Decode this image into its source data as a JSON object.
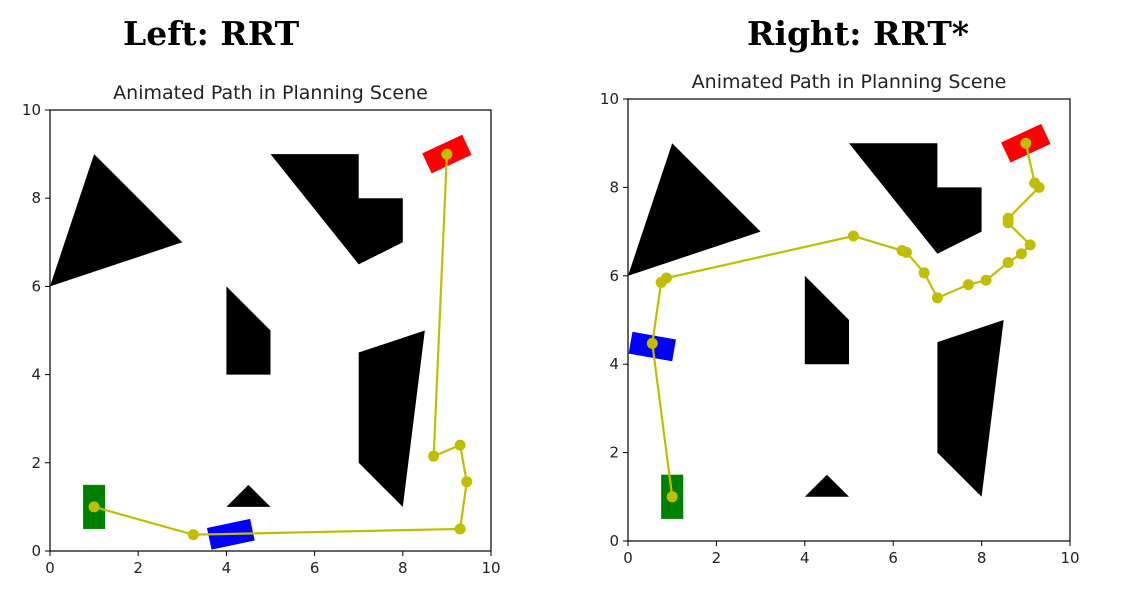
{
  "headings": {
    "left": "Left: RRT",
    "right": "Right: RRT*"
  },
  "colors": {
    "path": "#bfbf00",
    "obstacle": "#000000",
    "start": "#008000",
    "goal": "#ff0000",
    "robot": "#0000ff"
  },
  "chart_data": [
    {
      "type": "line",
      "title": "Animated Path in Planning Scene",
      "xlim": [
        0,
        10
      ],
      "ylim": [
        0,
        10
      ],
      "xticks": [
        "0",
        "2",
        "4",
        "6",
        "8",
        "10"
      ],
      "yticks": [
        "0",
        "2",
        "4",
        "6",
        "8",
        "10"
      ],
      "grid": false,
      "obstacles": [
        {
          "name": "triangle-large",
          "points": [
            [
              0,
              6
            ],
            [
              1,
              9
            ],
            [
              3,
              7
            ]
          ]
        },
        {
          "name": "l-shape",
          "points": [
            [
              5,
              9
            ],
            [
              7,
              9
            ],
            [
              7,
              8
            ],
            [
              8,
              8
            ],
            [
              8,
              7
            ],
            [
              7,
              6.5
            ]
          ]
        },
        {
          "name": "quad-mid",
          "points": [
            [
              4,
              6
            ],
            [
              5,
              5
            ],
            [
              5,
              4
            ],
            [
              4,
              4
            ]
          ]
        },
        {
          "name": "quad-right",
          "points": [
            [
              7,
              4.5
            ],
            [
              8.5,
              5
            ],
            [
              8,
              1
            ],
            [
              7,
              2
            ]
          ]
        },
        {
          "name": "triangle-small",
          "points": [
            [
              4,
              1
            ],
            [
              4.5,
              1.5
            ],
            [
              5,
              1
            ]
          ]
        }
      ],
      "start_marker": {
        "x": 1,
        "y": 1,
        "width": 0.5,
        "height": 1,
        "angle": 0
      },
      "goal_marker": {
        "x": 9,
        "y": 9,
        "width": 1,
        "height": 0.5,
        "angle": 25
      },
      "robot_marker": {
        "x": 4.1,
        "y": 0.38,
        "width": 1,
        "height": 0.5,
        "angle": 12
      },
      "path": [
        [
          1,
          1
        ],
        [
          3.25,
          0.37
        ],
        [
          9.3,
          0.5
        ],
        [
          9.45,
          1.57
        ],
        [
          9.3,
          2.4
        ],
        [
          8.7,
          2.15
        ],
        [
          9,
          9
        ]
      ]
    },
    {
      "type": "line",
      "title": "Animated Path in Planning Scene",
      "xlim": [
        0,
        10
      ],
      "ylim": [
        0,
        10
      ],
      "xticks": [
        "0",
        "2",
        "4",
        "6",
        "8",
        "10"
      ],
      "yticks": [
        "0",
        "2",
        "4",
        "6",
        "8",
        "10"
      ],
      "grid": false,
      "obstacles": [
        {
          "name": "triangle-large",
          "points": [
            [
              0,
              6
            ],
            [
              1,
              9
            ],
            [
              3,
              7
            ]
          ]
        },
        {
          "name": "l-shape",
          "points": [
            [
              5,
              9
            ],
            [
              7,
              9
            ],
            [
              7,
              8
            ],
            [
              8,
              8
            ],
            [
              8,
              7
            ],
            [
              7,
              6.5
            ]
          ]
        },
        {
          "name": "quad-mid",
          "points": [
            [
              4,
              6
            ],
            [
              5,
              5
            ],
            [
              5,
              4
            ],
            [
              4,
              4
            ]
          ]
        },
        {
          "name": "quad-right",
          "points": [
            [
              7,
              4.5
            ],
            [
              8.5,
              5
            ],
            [
              8,
              1
            ],
            [
              7,
              2
            ]
          ]
        },
        {
          "name": "triangle-small",
          "points": [
            [
              4,
              1
            ],
            [
              4.5,
              1.5
            ],
            [
              5,
              1
            ]
          ]
        }
      ],
      "start_marker": {
        "x": 1,
        "y": 1,
        "width": 0.5,
        "height": 1,
        "angle": 0
      },
      "goal_marker": {
        "x": 9,
        "y": 9,
        "width": 1,
        "height": 0.5,
        "angle": 25
      },
      "robot_marker": {
        "x": 0.55,
        "y": 4.4,
        "width": 1,
        "height": 0.5,
        "angle": -10
      },
      "path": [
        [
          1,
          1
        ],
        [
          0.55,
          4.47
        ],
        [
          0.75,
          5.85
        ],
        [
          0.87,
          5.95
        ],
        [
          5.1,
          6.9
        ],
        [
          6.2,
          6.57
        ],
        [
          6.3,
          6.53
        ],
        [
          6.7,
          6.07
        ],
        [
          7,
          5.5
        ],
        [
          7.7,
          5.8
        ],
        [
          8.1,
          5.9
        ],
        [
          8.6,
          6.3
        ],
        [
          8.9,
          6.5
        ],
        [
          9.1,
          6.7
        ],
        [
          8.6,
          7.2
        ],
        [
          8.6,
          7.3
        ],
        [
          9.3,
          8.0
        ],
        [
          9.2,
          8.1
        ],
        [
          9,
          9
        ]
      ]
    }
  ]
}
